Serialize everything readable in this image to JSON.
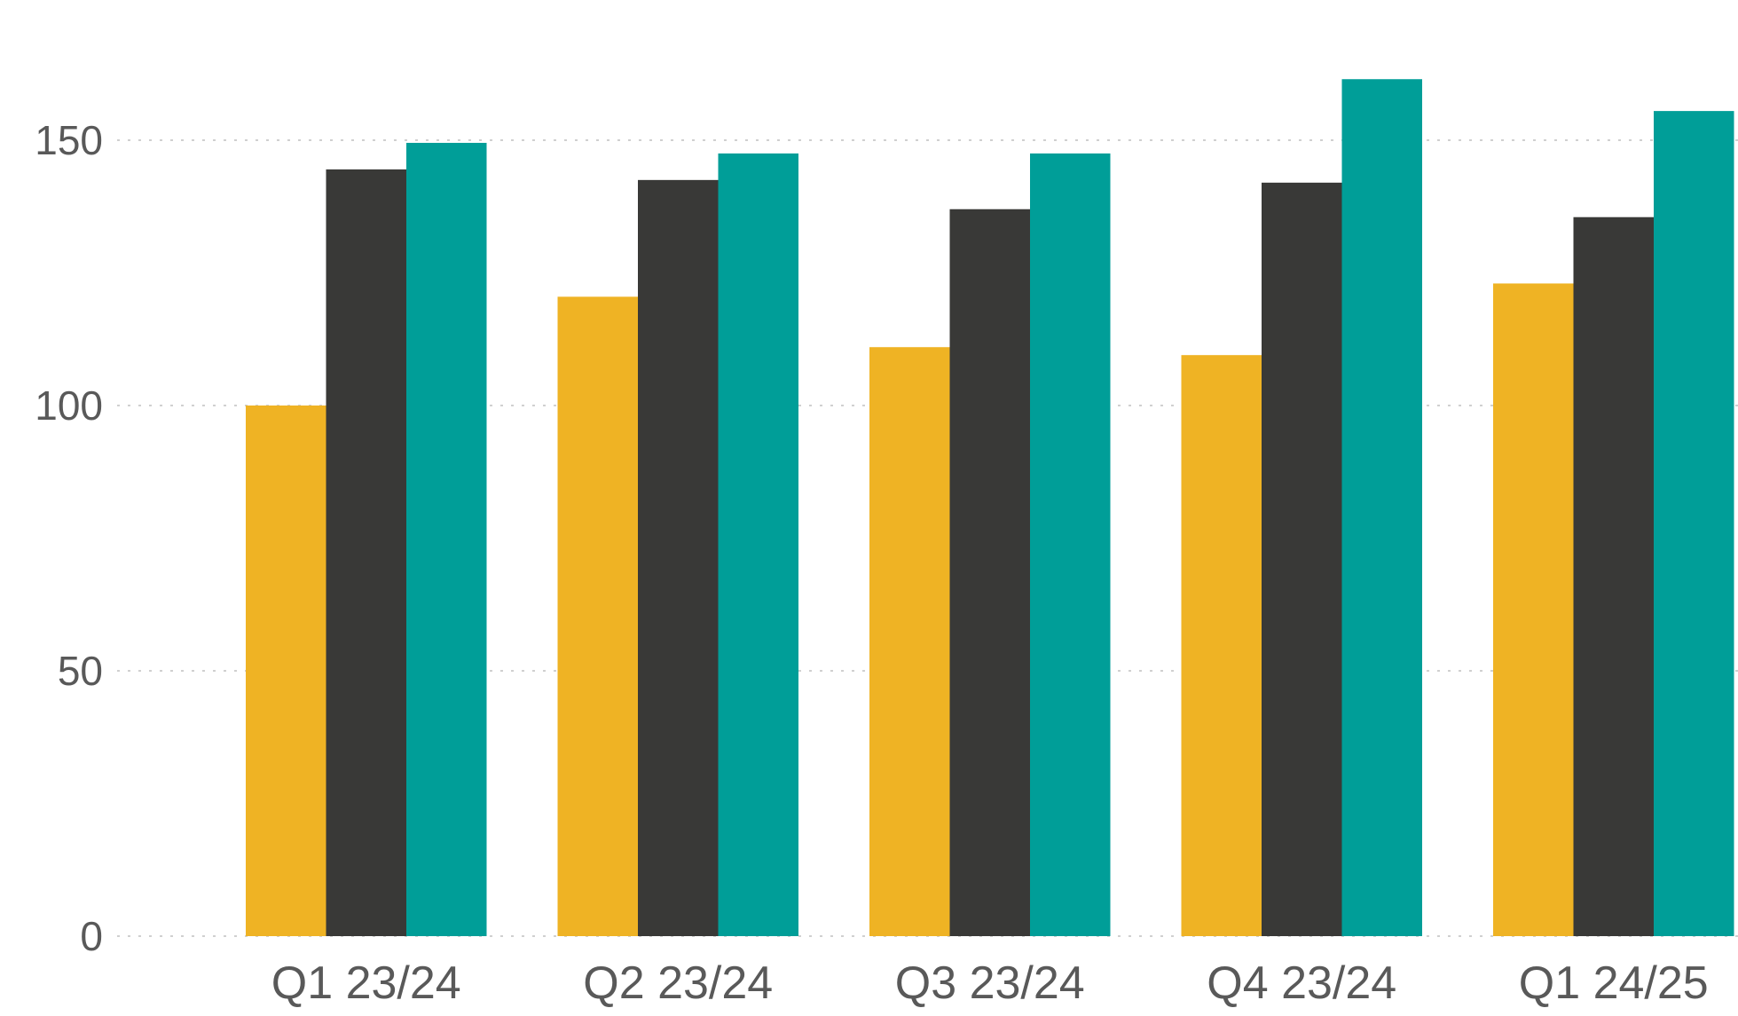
{
  "chart_data": {
    "type": "bar",
    "title": "",
    "xlabel": "",
    "ylabel": "",
    "categories": [
      "Q1 23/24",
      "Q2 23/24",
      "Q3 23/24",
      "Q4 23/24",
      "Q1 24/25"
    ],
    "series": [
      {
        "values": [
          100,
          120.5,
          111,
          109.5,
          123
        ],
        "color": "#EFB324"
      },
      {
        "values": [
          144.5,
          142.5,
          137,
          142,
          135.5
        ],
        "color": "#393937"
      },
      {
        "values": [
          149.5,
          147.5,
          147.5,
          161.5,
          155.5
        ],
        "color": "#009E98"
      }
    ],
    "yticks": [
      0,
      50,
      100,
      150
    ],
    "ylim": [
      0,
      176.5
    ],
    "grid": true,
    "legend": "none"
  }
}
